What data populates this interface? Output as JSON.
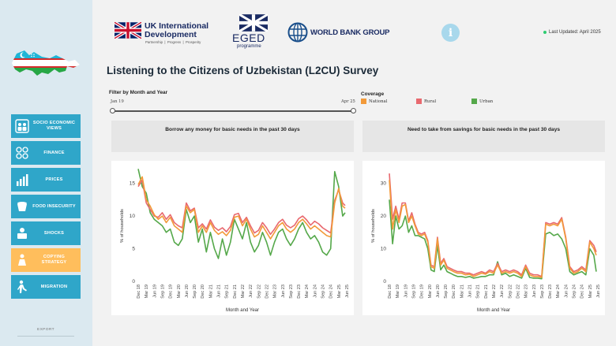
{
  "sidebar": {
    "items": [
      {
        "label": "SOCIO ECONOMIC VIEWS",
        "icon": "socio-economic-icon",
        "active": false
      },
      {
        "label": "FINANCE",
        "icon": "finance-icon",
        "active": false
      },
      {
        "label": "PRICES",
        "icon": "prices-chart-icon",
        "active": false
      },
      {
        "label": "FOOD INSECURITY",
        "icon": "food-icon",
        "active": false
      },
      {
        "label": "SHOCKS",
        "icon": "shocks-icon",
        "active": false
      },
      {
        "label": "COPYING STRATEGY",
        "icon": "coping-icon",
        "active": true
      },
      {
        "label": "MIGRATION",
        "icon": "migration-icon",
        "active": false
      }
    ],
    "export_label": "EXPORT"
  },
  "header": {
    "ukid": {
      "line1": "UK International",
      "line2": "Development",
      "tagline": "Partnership  |  Progress  |  Prosperity"
    },
    "eged": {
      "name": "EGED",
      "sub": "programme"
    },
    "worldbank": {
      "name": "WORLD BANK GROUP"
    },
    "last_updated": "Last Updated: April 2025"
  },
  "title": "Listening to the Citizens of Uzbekistan (L2CU) Survey",
  "filter": {
    "label": "Filter by Month and Year",
    "start": "Jan 19",
    "end": "Apr 25"
  },
  "coverage": {
    "label": "Coverage",
    "items": [
      {
        "name": "National",
        "color": "#f29a3a"
      },
      {
        "name": "Rural",
        "color": "#e8696f"
      },
      {
        "name": "Urban",
        "color": "#55a84a"
      }
    ]
  },
  "colors": {
    "national": "#f29a3a",
    "rural": "#e8696f",
    "urban": "#55a84a",
    "nav": "#2fa6c9",
    "nav_active": "#ffbe5c"
  },
  "chart_data": [
    {
      "type": "line",
      "title": "Borrow any money for basic needs in the past 30 days",
      "xlabel": "Month and Year",
      "ylabel": "% of households",
      "ylim": [
        0,
        17
      ],
      "yticks": [
        0,
        5,
        10,
        15
      ],
      "categories": [
        "Dec 18",
        "Mar 19",
        "Jun 19",
        "Sep 19",
        "Dec 19",
        "Mar 20",
        "Jun 20",
        "Sep 20",
        "Dec 20",
        "Mar 21",
        "Jun 21",
        "Sep 21",
        "Dec 21",
        "Mar 22",
        "Jun 22",
        "Sep 22",
        "Dec 22",
        "Mar 23",
        "Jun 23",
        "Sep 23",
        "Dec 23",
        "Mar 24",
        "Jun 24",
        "Sep 24",
        "Dec 24",
        "Mar 25",
        "Jun 25"
      ],
      "x_range": [
        0,
        26
      ],
      "series": [
        {
          "name": "National",
          "color": "#f29a3a",
          "x": [
            0,
            0.5,
            1,
            1.5,
            2,
            2.5,
            3,
            3.5,
            4,
            4.5,
            5,
            5.5,
            6,
            6.5,
            7,
            7.5,
            8,
            8.5,
            9,
            9.5,
            10,
            10.5,
            11,
            11.5,
            12,
            12.5,
            13,
            13.5,
            14,
            14.5,
            15,
            15.5,
            16,
            16.5,
            17,
            17.5,
            18,
            18.5,
            19,
            19.5,
            20,
            20.5,
            21,
            21.5,
            22,
            22.5,
            23,
            23.5,
            24,
            24.5,
            25,
            25.5,
            25.8
          ],
          "values": [
            14.8,
            16.0,
            12.5,
            11.5,
            10.2,
            9.5,
            10.0,
            9.0,
            9.8,
            8.5,
            8.0,
            7.5,
            11.5,
            10.5,
            11.0,
            7.5,
            8.5,
            7.5,
            9.0,
            7.8,
            7.2,
            7.6,
            7.0,
            7.8,
            9.8,
            10.0,
            8.5,
            9.5,
            8.0,
            6.8,
            7.2,
            8.5,
            7.5,
            6.5,
            7.5,
            8.5,
            9.0,
            8.0,
            7.5,
            8.0,
            9.0,
            9.5,
            8.8,
            8.0,
            8.5,
            8.0,
            7.5,
            7.0,
            6.8,
            12.0,
            14.2,
            11.5,
            11.2
          ]
        },
        {
          "name": "Rural",
          "color": "#e8696f",
          "x": [
            0,
            0.5,
            1,
            1.5,
            2,
            2.5,
            3,
            3.5,
            4,
            4.5,
            5,
            5.5,
            6,
            6.5,
            7,
            7.5,
            8,
            8.5,
            9,
            9.5,
            10,
            10.5,
            11,
            11.5,
            12,
            12.5,
            13,
            13.5,
            14,
            14.5,
            15,
            15.5,
            16,
            16.5,
            17,
            17.5,
            18,
            18.5,
            19,
            19.5,
            20,
            20.5,
            21,
            21.5,
            22,
            22.5,
            23,
            23.5,
            24,
            24.5,
            25,
            25.5,
            25.8
          ],
          "values": [
            14.5,
            15.5,
            12.0,
            11.0,
            10.0,
            9.8,
            10.5,
            9.5,
            10.2,
            9.0,
            8.5,
            8.2,
            12.0,
            10.8,
            11.2,
            8.2,
            8.8,
            8.0,
            9.4,
            8.3,
            7.8,
            8.2,
            7.6,
            8.4,
            10.2,
            10.4,
            9.0,
            9.8,
            8.5,
            7.4,
            7.8,
            9.0,
            8.2,
            7.2,
            8.0,
            9.0,
            9.5,
            8.6,
            8.2,
            8.6,
            9.6,
            10.0,
            9.4,
            8.6,
            9.2,
            8.8,
            8.2,
            7.8,
            7.4,
            12.4,
            14.0,
            12.0,
            11.6
          ]
        },
        {
          "name": "Urban",
          "color": "#55a84a",
          "x": [
            0,
            0.5,
            1,
            1.5,
            2,
            2.5,
            3,
            3.5,
            4,
            4.5,
            5,
            5.5,
            6,
            6.5,
            7,
            7.5,
            8,
            8.5,
            9,
            9.5,
            10,
            10.5,
            11,
            11.5,
            12,
            12.5,
            13,
            13.5,
            14,
            14.5,
            15,
            15.5,
            16,
            16.5,
            17,
            17.5,
            18,
            18.5,
            19,
            19.5,
            20,
            20.5,
            21,
            21.5,
            22,
            22.5,
            23,
            23.5,
            24,
            24.5,
            25,
            25.5,
            25.8
          ],
          "values": [
            17.2,
            14.5,
            13.5,
            10.5,
            9.5,
            9.0,
            8.5,
            7.5,
            8.0,
            6.0,
            5.5,
            6.5,
            11.0,
            9.0,
            10.0,
            6.0,
            8.0,
            4.5,
            7.5,
            5.0,
            3.5,
            6.5,
            4.0,
            6.0,
            9.5,
            8.0,
            6.5,
            9.0,
            6.0,
            4.5,
            5.5,
            7.5,
            6.0,
            4.0,
            6.0,
            7.5,
            8.0,
            6.5,
            5.5,
            6.5,
            8.0,
            9.0,
            7.5,
            6.5,
            7.0,
            6.0,
            4.5,
            4.0,
            5.0,
            16.8,
            14.5,
            10.0,
            10.5
          ]
        }
      ]
    },
    {
      "type": "line",
      "title": "Need to take from savings for basic needs in the past 30 days",
      "xlabel": "Month and Year",
      "ylabel": "% of households",
      "ylim": [
        0,
        34
      ],
      "yticks": [
        0,
        10,
        20,
        30
      ],
      "categories": [
        "Dec 18",
        "Mar 19",
        "Jun 19",
        "Sep 19",
        "Dec 19",
        "Mar 20",
        "Jun 20",
        "Sep 20",
        "Dec 20",
        "Mar 21",
        "Jun 21",
        "Sep 21",
        "Dec 21",
        "Mar 22",
        "Jun 22",
        "Sep 22",
        "Dec 22",
        "Mar 23",
        "Jun 23",
        "Sep 23",
        "Dec 23",
        "Mar 24",
        "Jun 24",
        "Sep 24",
        "Dec 24",
        "Mar 25",
        "Jun 25"
      ],
      "x_range": [
        0,
        26
      ],
      "series": [
        {
          "name": "National",
          "color": "#f29a3a",
          "x": [
            0,
            0.4,
            0.8,
            1.2,
            1.6,
            2,
            2.4,
            2.8,
            3.2,
            3.6,
            4,
            4.4,
            4.8,
            5.2,
            5.6,
            6,
            6.4,
            6.8,
            7.2,
            7.6,
            8,
            8.5,
            9,
            9.5,
            10,
            10.5,
            11,
            11.5,
            12,
            12.5,
            13,
            13.5,
            14,
            14.5,
            15,
            15.5,
            16,
            16.5,
            17,
            17.5,
            18,
            18.5,
            19,
            19.5,
            20,
            20.5,
            21,
            21.5,
            22,
            22.5,
            23,
            23.5,
            24,
            24.5,
            25,
            25.5,
            25.8
          ],
          "values": [
            31,
            16,
            22,
            18,
            23,
            23.5,
            18,
            20,
            17,
            14.5,
            14,
            14.5,
            12,
            4.5,
            4,
            13,
            5,
            6.5,
            4,
            3.5,
            3,
            2.5,
            2.5,
            2,
            2.2,
            1.5,
            2,
            2.5,
            2.2,
            3,
            2.5,
            5,
            2.5,
            3,
            2.5,
            3,
            2.5,
            1.5,
            4.5,
            2,
            1.5,
            1.5,
            1.2,
            17.5,
            17,
            17.5,
            17,
            19,
            13,
            4,
            2.5,
            3,
            4,
            3,
            12,
            10,
            8
          ]
        },
        {
          "name": "Rural",
          "color": "#e8696f",
          "x": [
            0,
            0.4,
            0.8,
            1.2,
            1.6,
            2,
            2.4,
            2.8,
            3.2,
            3.6,
            4,
            4.4,
            4.8,
            5.2,
            5.6,
            6,
            6.4,
            6.8,
            7.2,
            7.6,
            8,
            8.5,
            9,
            9.5,
            10,
            10.5,
            11,
            11.5,
            12,
            12.5,
            13,
            13.5,
            14,
            14.5,
            15,
            15.5,
            16,
            16.5,
            17,
            17.5,
            18,
            18.5,
            19,
            19.5,
            20,
            20.5,
            21,
            21.5,
            22,
            22.5,
            23,
            23.5,
            24,
            24.5,
            25,
            25.5,
            25.8
          ],
          "values": [
            33,
            19,
            23,
            19,
            24,
            24,
            18.5,
            21,
            17.5,
            15,
            14.5,
            15,
            12.5,
            5,
            4.5,
            13.5,
            5.5,
            7,
            4.5,
            4,
            3.5,
            3,
            3,
            2.5,
            2.5,
            2,
            2.5,
            3,
            2.5,
            3.5,
            3,
            5.5,
            3,
            3.5,
            3,
            3.5,
            3,
            2,
            5,
            2.5,
            2,
            2,
            1.5,
            18,
            17.5,
            18,
            17.5,
            19.5,
            13.5,
            4.5,
            3,
            3.5,
            4.5,
            3.5,
            12.5,
            11,
            9
          ]
        },
        {
          "name": "Urban",
          "color": "#55a84a",
          "x": [
            0,
            0.4,
            0.8,
            1.2,
            1.6,
            2,
            2.4,
            2.8,
            3.2,
            3.6,
            4,
            4.4,
            4.8,
            5.2,
            5.6,
            6,
            6.4,
            6.8,
            7.2,
            7.6,
            8,
            8.5,
            9,
            9.5,
            10,
            10.5,
            11,
            11.5,
            12,
            12.5,
            13,
            13.5,
            14,
            14.5,
            15,
            15.5,
            16,
            16.5,
            17,
            17.5,
            18,
            18.5,
            19,
            19.5,
            20,
            20.5,
            21,
            21.5,
            22,
            22.5,
            23,
            23.5,
            24,
            24.5,
            25,
            25.5,
            25.8
          ],
          "values": [
            25,
            11.5,
            20,
            16,
            17,
            20,
            15,
            17,
            14,
            14,
            13.5,
            13,
            10,
            3.5,
            3,
            11,
            3.5,
            5,
            3,
            2.5,
            2,
            1.5,
            1.5,
            1.2,
            1.5,
            1,
            1.2,
            1.5,
            1.5,
            2,
            2,
            6,
            2,
            2.5,
            1.5,
            2,
            1.5,
            1,
            4,
            1.2,
            1,
            1,
            0.8,
            14.5,
            15,
            14,
            14.5,
            13,
            10,
            3,
            2,
            2.5,
            3,
            2,
            10,
            8,
            3
          ]
        }
      ]
    }
  ]
}
